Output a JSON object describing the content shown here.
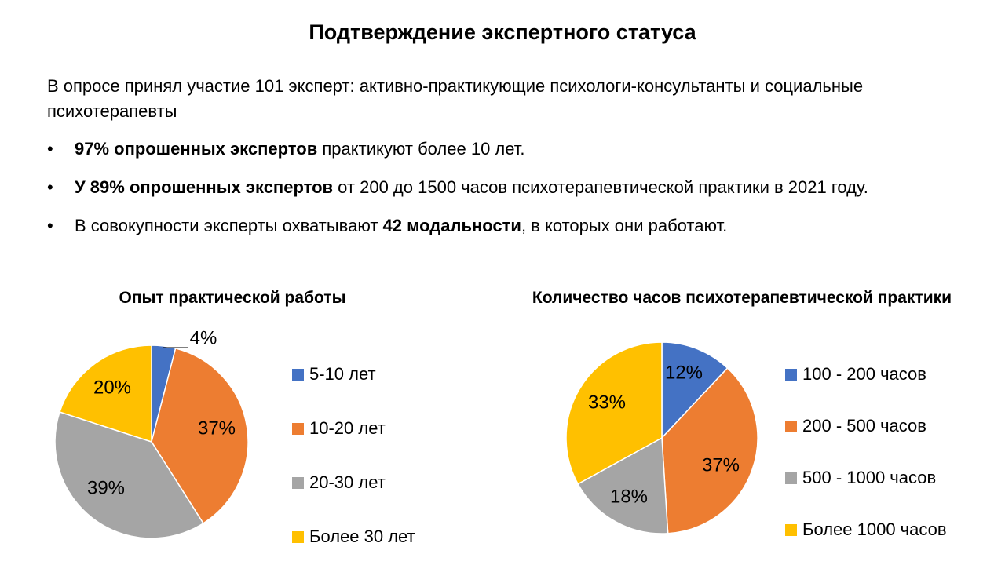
{
  "slide": {
    "title": "Подтверждение экспертного статуса",
    "intro": "В опросе принял участие 101 эксперт: активно-практикующие психологи-консультанты и социальные психотерапевты",
    "bullets": [
      {
        "bold_prefix": "97% опрошенных экспертов",
        "text": " практикуют более 10 лет.",
        "bold_mid": "",
        "suffix": ""
      },
      {
        "bold_prefix": "У 89% опрошенных экспертов",
        "text": " от 200 до 1500 часов психотерапевтической практики в 2021 году.",
        "bold_mid": "",
        "suffix": ""
      },
      {
        "bold_prefix": "",
        "text": "В совокупности эксперты охватывают ",
        "bold_mid": "42 модальности",
        "suffix": ", в которых они работают."
      }
    ],
    "bullet_symbol": "•"
  },
  "chart_data": [
    {
      "type": "pie",
      "title": "Опыт практической работы",
      "categories": [
        "5-10 лет",
        "10-20 лет",
        "20-30 лет",
        "Более 30 лет"
      ],
      "values": [
        4,
        37,
        39,
        20
      ],
      "labels": [
        "4%",
        "37%",
        "39%",
        "20%"
      ],
      "colors": [
        "#4472C4",
        "#ED7D31",
        "#A5A5A5",
        "#FFC000"
      ],
      "legend": "right"
    },
    {
      "type": "pie",
      "title": "Количество часов психотерапевтической практики",
      "categories": [
        "100 - 200 часов",
        "200 - 500 часов",
        "500 - 1000 часов",
        "Более 1000 часов"
      ],
      "values": [
        12,
        37,
        18,
        33
      ],
      "labels": [
        "12%",
        "37%",
        "18%",
        "33%"
      ],
      "colors": [
        "#4472C4",
        "#ED7D31",
        "#A5A5A5",
        "#FFC000"
      ],
      "legend": "right"
    }
  ]
}
